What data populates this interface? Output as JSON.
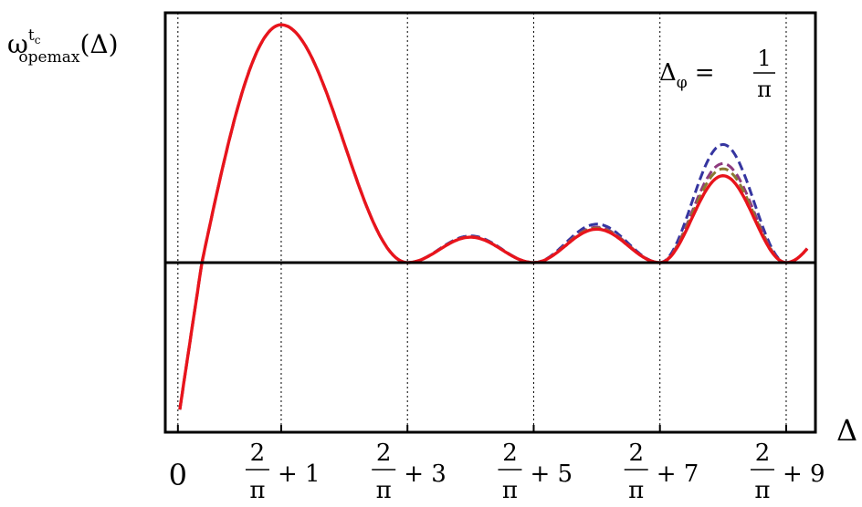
{
  "chart_data": {
    "type": "line",
    "ylabel": {
      "base": "ω",
      "sup": "t",
      "sup_sub": "c",
      "sub": "opemax",
      "arg": "(Δ)"
    },
    "xlabel": "Δ",
    "annotation": {
      "lhs": "Δ",
      "lhs_sub": "φ",
      "eq": "=",
      "num": "1",
      "den": "π"
    },
    "x_ticks": [
      {
        "x": 0,
        "label": "0"
      },
      {
        "x": 1.6366,
        "num": "2",
        "den": "π",
        "rest": "+ 1"
      },
      {
        "x": 3.6366,
        "num": "2",
        "den": "π",
        "rest": "+ 3"
      },
      {
        "x": 5.6366,
        "num": "2",
        "den": "π",
        "rest": "+ 5"
      },
      {
        "x": 7.6366,
        "num": "2",
        "den": "π",
        "rest": "+ 7"
      },
      {
        "x": 9.6366,
        "num": "2",
        "den": "π",
        "rest": "+ 9"
      }
    ],
    "xlim": [
      -0.2,
      10.1
    ],
    "ylim": [
      -1.27,
      1.87
    ],
    "grid": "vertical dotted at tick positions",
    "series": [
      {
        "color": "#3535a0",
        "dash": true,
        "extra": [
          0.0,
          0.0,
          0.05,
          0.15,
          0.36
        ]
      },
      {
        "color": "#8e3a7e",
        "dash": true,
        "extra": [
          0.0,
          0.0,
          0.02,
          0.06,
          0.14
        ]
      },
      {
        "color": "#8a7a32",
        "dash": true,
        "extra": [
          0.0,
          0.0,
          0.01,
          0.03,
          0.08
        ]
      },
      {
        "color": "#e8141c",
        "dash": false,
        "extra": [
          0.0,
          0.0,
          0.0,
          0.0,
          0.0
        ]
      }
    ]
  }
}
